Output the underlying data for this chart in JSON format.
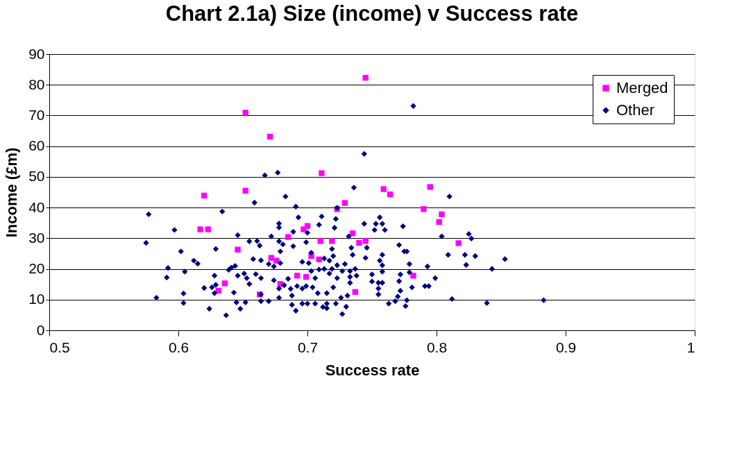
{
  "chart_data": {
    "type": "scatter",
    "title": "Chart 2.1a) Size (income) v Success rate",
    "xlabel": "Success rate",
    "ylabel": "Income (£m)",
    "xlim": [
      0.5,
      1
    ],
    "xticks": [
      0.5,
      0.6,
      0.7,
      0.8,
      0.9,
      1
    ],
    "ylim": [
      0,
      90
    ],
    "yticks": [
      0,
      10,
      20,
      30,
      40,
      50,
      60,
      70,
      80,
      90
    ],
    "grid": "y",
    "legend": "top right",
    "series": [
      {
        "name": "Merged",
        "color": "#ff00ff",
        "marker": "square",
        "x": [
          0.652,
          0.671,
          0.62,
          0.652,
          0.617,
          0.623,
          0.646,
          0.636,
          0.631,
          0.663,
          0.711,
          0.672,
          0.676,
          0.685,
          0.692,
          0.697,
          0.7,
          0.699,
          0.703,
          0.71,
          0.709,
          0.679,
          0.745,
          0.729,
          0.723,
          0.735,
          0.74,
          0.745,
          0.719,
          0.759,
          0.764,
          0.782,
          0.79,
          0.795,
          0.802,
          0.804,
          0.737,
          0.817
        ],
        "values": [
          70.9,
          63.1,
          43.9,
          45.5,
          32.9,
          32.9,
          26.3,
          15.3,
          12.9,
          11.7,
          51.2,
          23.6,
          22.7,
          30.4,
          17.8,
          32.9,
          34.0,
          17.4,
          24.2,
          29.1,
          23.1,
          15.1,
          82.3,
          41.5,
          39.5,
          31.6,
          28.5,
          29.1,
          29.1,
          46.0,
          44.3,
          17.8,
          39.5,
          46.7,
          35.3,
          37.8,
          12.5,
          28.4
        ]
      },
      {
        "name": "Other",
        "color": "#000080",
        "marker": "diamond",
        "x": [
          0.577,
          0.575,
          0.583,
          0.597,
          0.602,
          0.591,
          0.592,
          0.605,
          0.604,
          0.604,
          0.612,
          0.615,
          0.62,
          0.624,
          0.628,
          0.629,
          0.626,
          0.628,
          0.629,
          0.634,
          0.637,
          0.643,
          0.645,
          0.648,
          0.652,
          0.639,
          0.641,
          0.644,
          0.646,
          0.646,
          0.651,
          0.653,
          0.655,
          0.659,
          0.655,
          0.661,
          0.663,
          0.658,
          0.664,
          0.66,
          0.664,
          0.664,
          0.664,
          0.67,
          0.667,
          0.677,
          0.683,
          0.691,
          0.693,
          0.678,
          0.678,
          0.672,
          0.678,
          0.681,
          0.679,
          0.689,
          0.689,
          0.67,
          0.674,
          0.679,
          0.674,
          0.678,
          0.678,
          0.685,
          0.682,
          0.687,
          0.688,
          0.688,
          0.691,
          0.692,
          0.696,
          0.699,
          0.704,
          0.696,
          0.7,
          0.706,
          0.7,
          0.699,
          0.703,
          0.696,
          0.701,
          0.703,
          0.706,
          0.709,
          0.709,
          0.711,
          0.708,
          0.712,
          0.782,
          0.744,
          0.736,
          0.723,
          0.722,
          0.721,
          0.756,
          0.753,
          0.758,
          0.752,
          0.76,
          0.744,
          0.774,
          0.732,
          0.719,
          0.734,
          0.735,
          0.746,
          0.745,
          0.771,
          0.775,
          0.777,
          0.779,
          0.758,
          0.756,
          0.758,
          0.758,
          0.72,
          0.717,
          0.713,
          0.723,
          0.719,
          0.717,
          0.713,
          0.727,
          0.729,
          0.733,
          0.737,
          0.738,
          0.733,
          0.733,
          0.723,
          0.72,
          0.75,
          0.75,
          0.755,
          0.758,
          0.755,
          0.755,
          0.771,
          0.772,
          0.779,
          0.781,
          0.793,
          0.799,
          0.791,
          0.794,
          0.772,
          0.77,
          0.768,
          0.777,
          0.776,
          0.763,
          0.715,
          0.715,
          0.715,
          0.722,
          0.726,
          0.73,
          0.727,
          0.731,
          0.81,
          0.809,
          0.804,
          0.825,
          0.827,
          0.822,
          0.823,
          0.83,
          0.843,
          0.853,
          0.812,
          0.839,
          0.883
        ],
        "values": [
          37.8,
          28.5,
          10.6,
          32.7,
          25.7,
          17.2,
          20.3,
          19.1,
          12.0,
          8.9,
          22.7,
          21.7,
          13.8,
          7.0,
          17.8,
          14.8,
          14.0,
          12.1,
          26.5,
          38.7,
          4.9,
          12.3,
          9.1,
          7.0,
          9.1,
          19.7,
          20.4,
          21.0,
          31.0,
          17.8,
          18.5,
          17.0,
          15.1,
          41.6,
          29.0,
          29.1,
          27.6,
          23.2,
          22.8,
          18.3,
          17.0,
          11.7,
          9.5,
          9.5,
          50.5,
          51.4,
          43.6,
          40.3,
          36.8,
          34.8,
          33.5,
          30.6,
          29.0,
          28.0,
          25.7,
          32.1,
          27.4,
          21.6,
          20.8,
          21.9,
          16.3,
          13.6,
          10.6,
          16.8,
          14.7,
          13.5,
          11.3,
          8.3,
          6.4,
          14.4,
          13.6,
          14.4,
          14.0,
          8.7,
          8.7,
          8.7,
          31.8,
          28.7,
          25.3,
          22.3,
          21.9,
          19.3,
          17.0,
          19.8,
          34.4,
          37.1,
          12.1,
          7.6,
          73.1,
          57.5,
          46.5,
          39.9,
          36.3,
          33.4,
          36.8,
          34.7,
          34.7,
          32.7,
          32.7,
          34.7,
          33.9,
          30.6,
          26.5,
          26.9,
          24.6,
          26.9,
          23.6,
          27.8,
          25.7,
          25.7,
          21.6,
          24.6,
          22.7,
          21.2,
          19.1,
          24.2,
          22.7,
          23.4,
          21.2,
          20.0,
          18.5,
          20.0,
          19.3,
          21.6,
          19.3,
          20.0,
          17.8,
          17.4,
          15.5,
          17.0,
          14.0,
          18.2,
          15.9,
          15.5,
          15.5,
          13.6,
          11.7,
          16.0,
          18.2,
          18.9,
          14.0,
          20.8,
          17.0,
          14.4,
          14.4,
          12.9,
          11.0,
          9.5,
          9.8,
          7.9,
          8.7,
          12.1,
          7.2,
          8.7,
          8.7,
          10.6,
          7.7,
          5.3,
          11.3,
          43.6,
          24.6,
          30.6,
          31.4,
          29.9,
          24.6,
          21.3,
          24.2,
          20.0,
          23.2,
          10.2,
          8.9,
          9.8
        ]
      }
    ]
  }
}
